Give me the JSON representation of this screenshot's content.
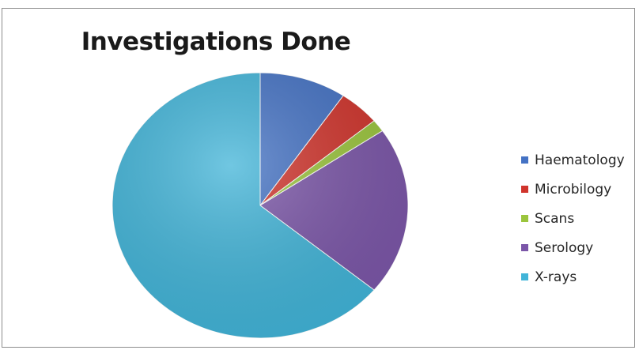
{
  "chart_data": {
    "type": "pie",
    "title": "Investigations Done",
    "categories": [
      "Haematology",
      "Microbilogy",
      "Scans",
      "Serology",
      "X-rays"
    ],
    "values": [
      9.5,
      4.5,
      1.5,
      20.5,
      64.0
    ],
    "value_unit": "percent (estimated)",
    "colors": [
      "#4472c4",
      "#d0342c",
      "#9bc53d",
      "#7b56a8",
      "#41b4d8"
    ],
    "start_angle_deg": 0,
    "direction": "clockwise",
    "legend_position": "right"
  }
}
